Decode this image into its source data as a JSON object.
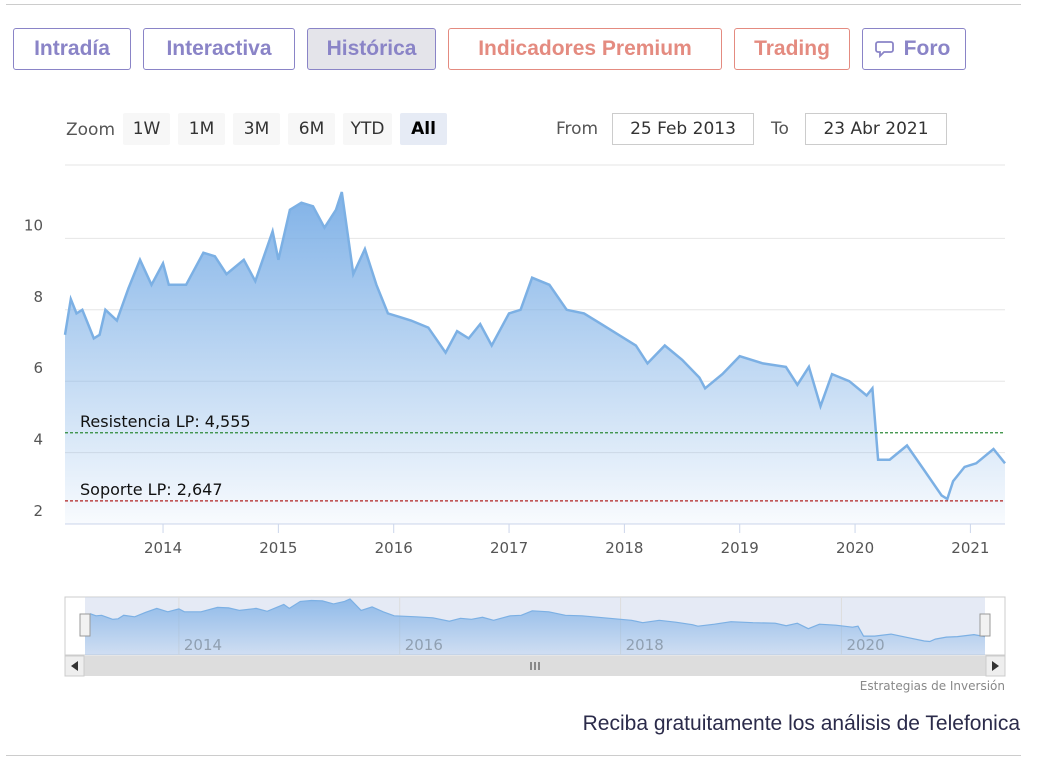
{
  "tabs": [
    "Intradía",
    "Interactiva",
    "Histórica",
    "Indicadores Premium",
    "Trading",
    "Foro"
  ],
  "zoom": {
    "label": "Zoom",
    "buttons": [
      "1W",
      "1M",
      "3M",
      "6M",
      "YTD",
      "All"
    ]
  },
  "range": {
    "from_label": "From",
    "from": "25 Feb 2013",
    "to_label": "To",
    "to": "23 Abr 2021"
  },
  "chart_data": {
    "type": "area",
    "color": "#7cb0e4",
    "x": [
      2013.15,
      2013.2,
      2013.25,
      2013.3,
      2013.35,
      2013.4,
      2013.45,
      2013.5,
      2013.6,
      2013.7,
      2013.8,
      2013.9,
      2014.0,
      2014.05,
      2014.2,
      2014.35,
      2014.45,
      2014.55,
      2014.7,
      2014.8,
      2014.95,
      2015.0,
      2015.1,
      2015.2,
      2015.3,
      2015.4,
      2015.5,
      2015.55,
      2015.65,
      2015.75,
      2015.85,
      2015.95,
      2016.05,
      2016.15,
      2016.3,
      2016.45,
      2016.55,
      2016.65,
      2016.75,
      2016.85,
      2017.0,
      2017.1,
      2017.2,
      2017.35,
      2017.5,
      2017.65,
      2017.8,
      2017.95,
      2018.1,
      2018.2,
      2018.35,
      2018.5,
      2018.65,
      2018.7,
      2018.85,
      2019.0,
      2019.2,
      2019.4,
      2019.5,
      2019.6,
      2019.7,
      2019.8,
      2019.95,
      2020.1,
      2020.15,
      2020.2,
      2020.3,
      2020.45,
      2020.6,
      2020.75,
      2020.8,
      2020.85,
      2020.95,
      2021.05,
      2021.2,
      2021.3
    ],
    "values": [
      7.3,
      8.3,
      7.9,
      8.0,
      7.6,
      7.2,
      7.3,
      8.0,
      7.7,
      8.6,
      9.4,
      8.7,
      9.3,
      8.7,
      8.7,
      9.6,
      9.5,
      9.0,
      9.4,
      8.8,
      10.2,
      9.4,
      10.8,
      11.0,
      10.9,
      10.3,
      10.8,
      11.3,
      9.0,
      9.7,
      8.7,
      7.9,
      7.8,
      7.7,
      7.5,
      6.8,
      7.4,
      7.2,
      7.6,
      7.0,
      7.9,
      8.0,
      8.9,
      8.7,
      8.0,
      7.9,
      7.6,
      7.3,
      7.0,
      6.5,
      7.0,
      6.6,
      6.1,
      5.8,
      6.2,
      6.7,
      6.5,
      6.4,
      5.9,
      6.4,
      5.3,
      6.2,
      6.0,
      5.6,
      5.8,
      3.8,
      3.8,
      4.2,
      3.5,
      2.8,
      2.7,
      3.2,
      3.6,
      3.7,
      4.1,
      3.7
    ],
    "xlim": [
      2013.15,
      2021.3
    ],
    "xticks": [
      2014,
      2015,
      2016,
      2017,
      2018,
      2019,
      2020,
      2021
    ],
    "ylim": [
      2,
      12
    ],
    "yticks": [
      2,
      4,
      6,
      8,
      10
    ],
    "grid": true,
    "plot_lines": [
      {
        "label": "Resistencia LP: 4,555",
        "value": 4.555,
        "color": "#2e8b3a"
      },
      {
        "label": "Soporte LP: 2,647",
        "value": 2.647,
        "color": "#b22222"
      }
    ],
    "navigator_xticks": [
      2014,
      2016,
      2018,
      2020
    ]
  },
  "credit": "Estrategias de Inversión",
  "footer_link": "Reciba gratuitamente los análisis de Telefonica"
}
